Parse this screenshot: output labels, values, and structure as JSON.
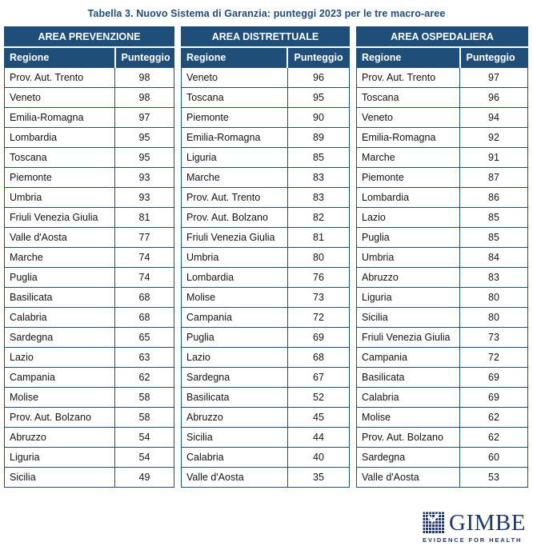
{
  "title": "Tabella 3. Nuovo Sistema di Garanzia: punteggi 2023 per le tre macro-aree",
  "columns": {
    "regione": "Regione",
    "punteggio": "Punteggio"
  },
  "colors": {
    "header_blue": "#1F4E79",
    "border_blue": "#1F4E79",
    "title_blue": "#1F4E79",
    "logo_navy": "#1F3864",
    "body_text": "#141414"
  },
  "logo": {
    "name": "GIMBE",
    "tagline": "EVIDENCE FOR HEALTH",
    "icon": "gimbe-grid-check-icon"
  },
  "tables": [
    {
      "area": "AREA PREVENZIONE",
      "rows": [
        {
          "regione": "Prov. Aut. Trento",
          "punteggio": "98"
        },
        {
          "regione": "Veneto",
          "punteggio": "98"
        },
        {
          "regione": "Emilia-Romagna",
          "punteggio": "97"
        },
        {
          "regione": "Lombardia",
          "punteggio": "95"
        },
        {
          "regione": "Toscana",
          "punteggio": "95"
        },
        {
          "regione": "Piemonte",
          "punteggio": "93"
        },
        {
          "regione": "Umbria",
          "punteggio": "93"
        },
        {
          "regione": "Friuli Venezia Giulia",
          "punteggio": "81"
        },
        {
          "regione": "Valle d'Aosta",
          "punteggio": "77"
        },
        {
          "regione": "Marche",
          "punteggio": "74"
        },
        {
          "regione": "Puglia",
          "punteggio": "74"
        },
        {
          "regione": "Basilicata",
          "punteggio": "68"
        },
        {
          "regione": "Calabria",
          "punteggio": "68"
        },
        {
          "regione": "Sardegna",
          "punteggio": "65"
        },
        {
          "regione": "Lazio",
          "punteggio": "63"
        },
        {
          "regione": "Campania",
          "punteggio": "62"
        },
        {
          "regione": "Molise",
          "punteggio": "58"
        },
        {
          "regione": "Prov. Aut. Bolzano",
          "punteggio": "58"
        },
        {
          "regione": "Abruzzo",
          "punteggio": "54"
        },
        {
          "regione": "Liguria",
          "punteggio": "54"
        },
        {
          "regione": "Sicilia",
          "punteggio": "49"
        }
      ]
    },
    {
      "area": "AREA DISTRETTUALE",
      "rows": [
        {
          "regione": "Veneto",
          "punteggio": "96"
        },
        {
          "regione": "Toscana",
          "punteggio": "95"
        },
        {
          "regione": "Piemonte",
          "punteggio": "90"
        },
        {
          "regione": "Emilia-Romagna",
          "punteggio": "89"
        },
        {
          "regione": "Liguria",
          "punteggio": "85"
        },
        {
          "regione": "Marche",
          "punteggio": "83"
        },
        {
          "regione": "Prov. Aut. Trento",
          "punteggio": "83"
        },
        {
          "regione": "Prov. Aut. Bolzano",
          "punteggio": "82"
        },
        {
          "regione": "Friuli Venezia Giulia",
          "punteggio": "81"
        },
        {
          "regione": "Umbria",
          "punteggio": "80"
        },
        {
          "regione": "Lombardia",
          "punteggio": "76"
        },
        {
          "regione": "Molise",
          "punteggio": "73"
        },
        {
          "regione": "Campania",
          "punteggio": "72"
        },
        {
          "regione": "Puglia",
          "punteggio": "69"
        },
        {
          "regione": "Lazio",
          "punteggio": "68"
        },
        {
          "regione": "Sardegna",
          "punteggio": "67"
        },
        {
          "regione": "Basilicata",
          "punteggio": "52"
        },
        {
          "regione": "Abruzzo",
          "punteggio": "45"
        },
        {
          "regione": "Sicilia",
          "punteggio": "44"
        },
        {
          "regione": "Calabria",
          "punteggio": "40"
        },
        {
          "regione": "Valle d'Aosta",
          "punteggio": "35"
        }
      ]
    },
    {
      "area": "AREA OSPEDALIERA",
      "rows": [
        {
          "regione": "Prov. Aut. Trento",
          "punteggio": "97"
        },
        {
          "regione": "Toscana",
          "punteggio": "96"
        },
        {
          "regione": "Veneto",
          "punteggio": "94"
        },
        {
          "regione": "Emilia-Romagna",
          "punteggio": "92"
        },
        {
          "regione": "Marche",
          "punteggio": "91"
        },
        {
          "regione": "Piemonte",
          "punteggio": "87"
        },
        {
          "regione": "Lombardia",
          "punteggio": "86"
        },
        {
          "regione": "Lazio",
          "punteggio": "85"
        },
        {
          "regione": "Puglia",
          "punteggio": "85"
        },
        {
          "regione": "Umbria",
          "punteggio": "84"
        },
        {
          "regione": "Abruzzo",
          "punteggio": "83"
        },
        {
          "regione": "Liguria",
          "punteggio": "80"
        },
        {
          "regione": "Sicilia",
          "punteggio": "80"
        },
        {
          "regione": "Friuli Venezia Giulia",
          "punteggio": "73"
        },
        {
          "regione": "Campania",
          "punteggio": "72"
        },
        {
          "regione": "Basilicata",
          "punteggio": "69"
        },
        {
          "regione": "Calabria",
          "punteggio": "69"
        },
        {
          "regione": "Molise",
          "punteggio": "62"
        },
        {
          "regione": "Prov. Aut. Bolzano",
          "punteggio": "62"
        },
        {
          "regione": "Sardegna",
          "punteggio": "60"
        },
        {
          "regione": "Valle d'Aosta",
          "punteggio": "53"
        }
      ]
    }
  ]
}
